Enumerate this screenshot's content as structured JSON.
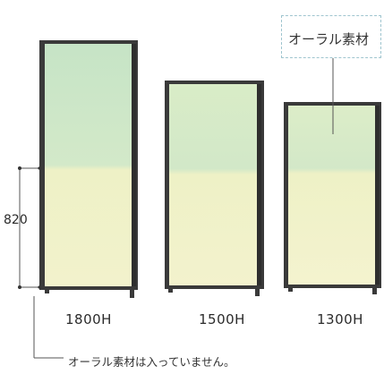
{
  "callout": {
    "text": "オーラル素材"
  },
  "dimension": {
    "value": "820"
  },
  "panels": [
    {
      "label": "1800H"
    },
    {
      "label": "1500H"
    },
    {
      "label": "1300H"
    }
  ],
  "note": {
    "text": "オーラル素材は入っていません。"
  },
  "colors": {
    "frame": "#3a3a3a",
    "upper_fill": "#c9e6c7",
    "lower_fill": "#eef2c7",
    "callout_border": "#9fc5cf",
    "leader_line": "#555555"
  }
}
